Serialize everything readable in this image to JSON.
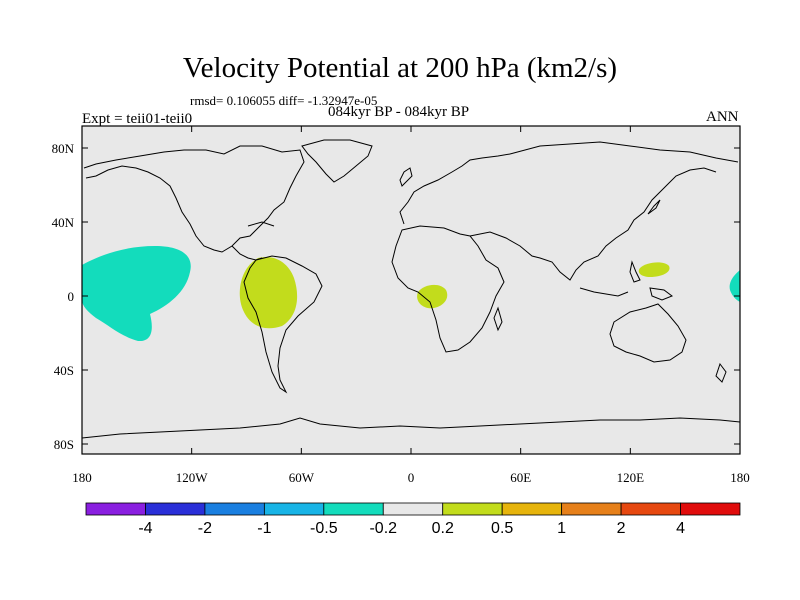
{
  "title": "Velocity Potential at 200 hPa (km2/s)",
  "stats": "rmsd= 0.106055 diff= -1.32947e-05",
  "period": "084kyr BP - 084kyr BP",
  "experiment": "Expt = teii01-teii0",
  "season": "ANN",
  "map": {
    "background_color": "#e8e8e8",
    "lat_ticks": [
      "80N",
      "40N",
      "0",
      "40S",
      "80S"
    ],
    "lon_ticks": [
      "180",
      "120W",
      "60W",
      "0",
      "60E",
      "120E",
      "180"
    ]
  },
  "colorbar": {
    "colors": [
      "#8a1fe0",
      "#2a2fd8",
      "#1a7fe0",
      "#18b4e6",
      "#13dcbc",
      "#e8e8e8",
      "#c2dc1c",
      "#e6b40c",
      "#e6801a",
      "#e64810",
      "#e00c0c"
    ],
    "labels": [
      "-4",
      "-2",
      "-1",
      "-0.5",
      "-0.2",
      "0.2",
      "0.5",
      "1",
      "2",
      "4"
    ]
  }
}
